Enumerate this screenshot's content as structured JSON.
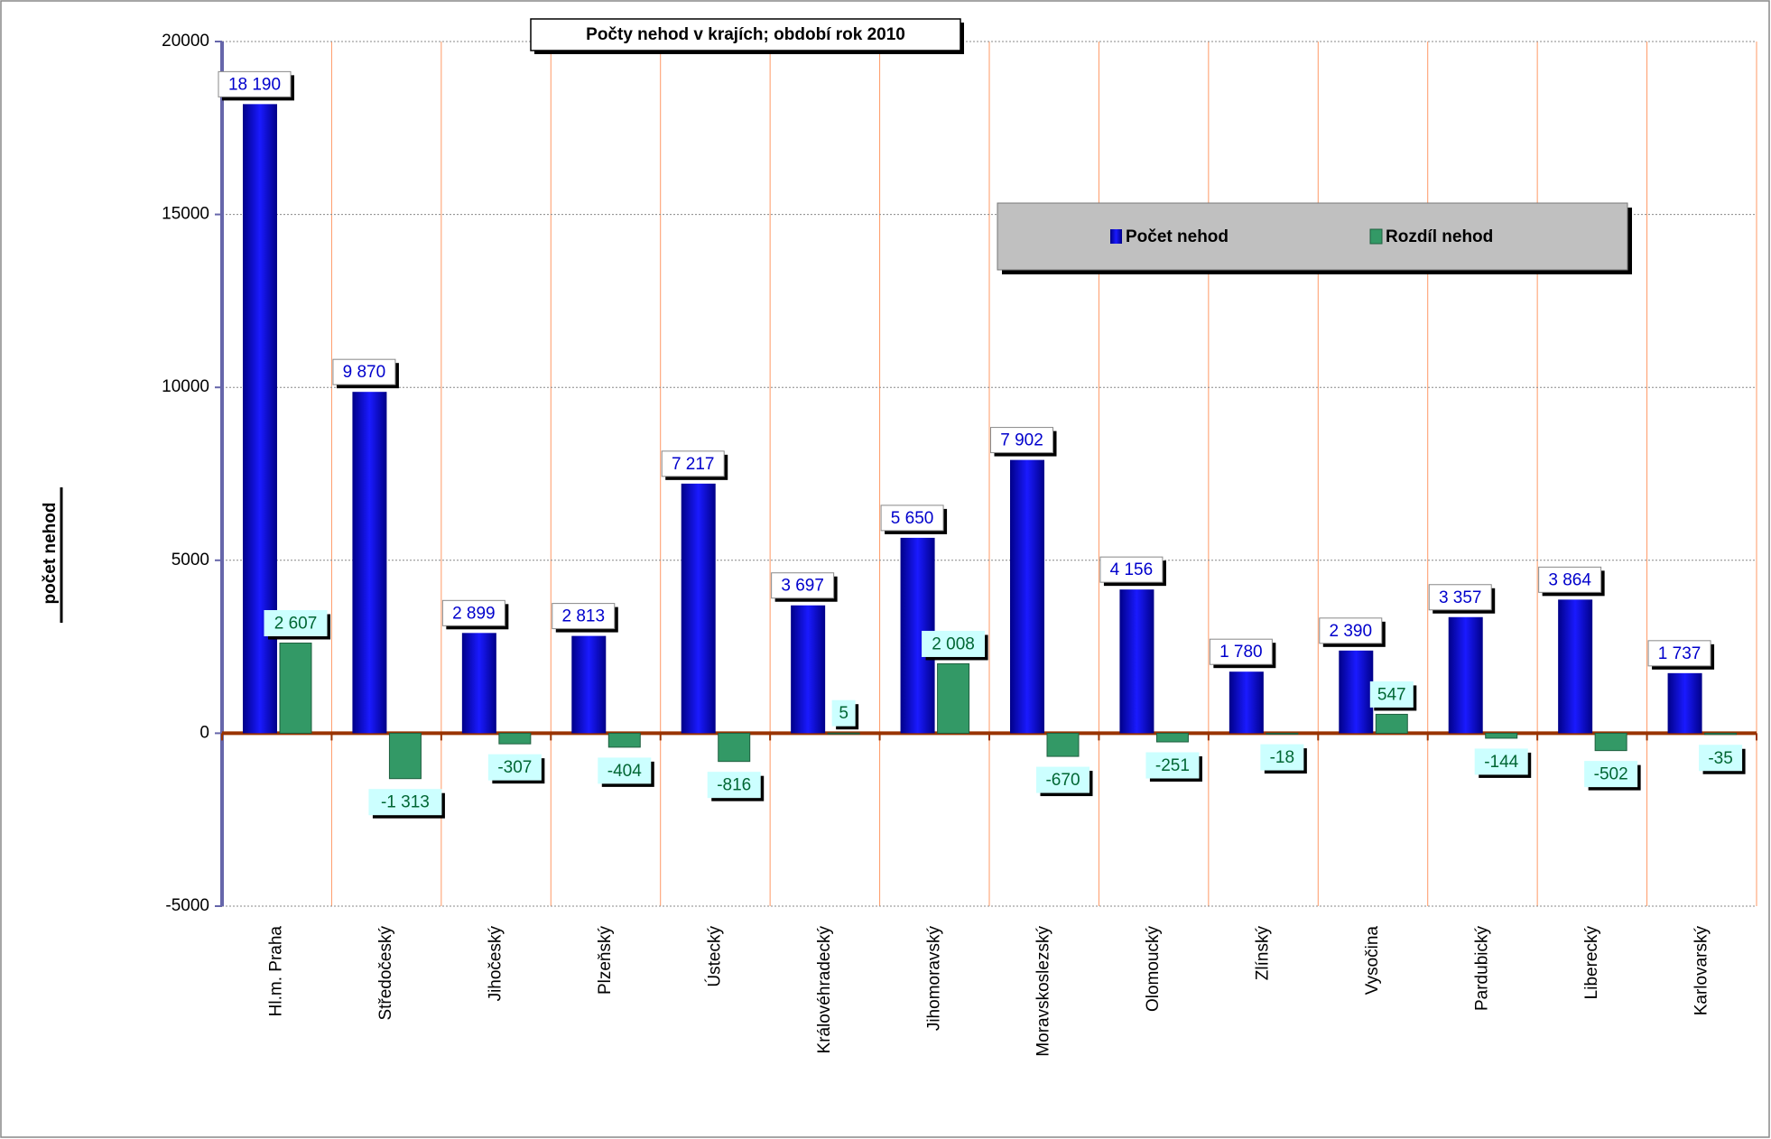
{
  "chart_data": {
    "type": "bar",
    "title": "Počty nehod v krajích; období rok  2010",
    "y_label": "počet nehod",
    "categories": [
      "Hl.m. Praha",
      "Středočeský",
      "Jihočeský",
      "Plzeňský",
      "Ústecký",
      "Královéhradecký",
      "Jihomoravský",
      "Moravskoslezský",
      "Olomoucký",
      "Zlínský",
      "Vysočina",
      "Pardubický",
      "Liberecký",
      "Karlovarský"
    ],
    "series": [
      {
        "name": "Počet nehod",
        "color": "#0000cc",
        "values": [
          18190,
          9870,
          2899,
          2813,
          7217,
          3697,
          5650,
          7902,
          4156,
          1780,
          2390,
          3357,
          3864,
          1737
        ],
        "value_labels": [
          "18 190",
          "9 870",
          "2 899",
          "2 813",
          "7 217",
          "3 697",
          "5 650",
          "7 902",
          "4 156",
          "1 780",
          "2 390",
          "3 357",
          "3 864",
          "1 737"
        ]
      },
      {
        "name": "Rozdíl nehod",
        "color": "#339966",
        "values": [
          2607,
          -1313,
          -307,
          -404,
          -816,
          5,
          2008,
          -670,
          -251,
          -18,
          547,
          -144,
          -502,
          -35
        ],
        "value_labels": [
          "2 607",
          "-1 313",
          "-307",
          "-404",
          "-816",
          "5",
          "2 008",
          "-670",
          "-251",
          "-18",
          "547",
          "-144",
          "-502",
          "-35"
        ]
      }
    ],
    "ylim": [
      -5000,
      20000
    ],
    "yticks": [
      -5000,
      0,
      5000,
      10000,
      15000,
      20000
    ],
    "grid": true
  }
}
